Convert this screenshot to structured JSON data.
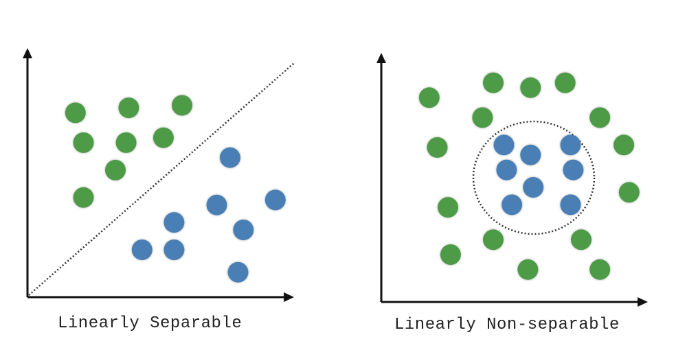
{
  "colors": {
    "class_a": "#4e9a47",
    "class_b": "#4a7fb5",
    "axis": "#111111",
    "boundary": "#333333"
  },
  "diagrams": [
    {
      "id": "left",
      "caption": "Linearly Separable",
      "boundary": "line",
      "points": [
        {
          "cls": "a",
          "x": 0.18,
          "y": 0.74
        },
        {
          "cls": "a",
          "x": 0.38,
          "y": 0.76
        },
        {
          "cls": "a",
          "x": 0.58,
          "y": 0.77
        },
        {
          "cls": "a",
          "x": 0.21,
          "y": 0.62
        },
        {
          "cls": "a",
          "x": 0.37,
          "y": 0.62
        },
        {
          "cls": "a",
          "x": 0.51,
          "y": 0.64
        },
        {
          "cls": "a",
          "x": 0.33,
          "y": 0.51
        },
        {
          "cls": "a",
          "x": 0.21,
          "y": 0.4
        },
        {
          "cls": "b",
          "x": 0.76,
          "y": 0.56
        },
        {
          "cls": "b",
          "x": 0.71,
          "y": 0.37
        },
        {
          "cls": "b",
          "x": 0.93,
          "y": 0.39
        },
        {
          "cls": "b",
          "x": 0.55,
          "y": 0.3
        },
        {
          "cls": "b",
          "x": 0.81,
          "y": 0.27
        },
        {
          "cls": "b",
          "x": 0.43,
          "y": 0.19
        },
        {
          "cls": "b",
          "x": 0.55,
          "y": 0.19
        },
        {
          "cls": "b",
          "x": 0.79,
          "y": 0.1
        }
      ]
    },
    {
      "id": "right",
      "caption": "Linearly Non-separable",
      "boundary": "circle",
      "points": [
        {
          "cls": "a",
          "x": 0.42,
          "y": 0.88
        },
        {
          "cls": "a",
          "x": 0.56,
          "y": 0.86
        },
        {
          "cls": "a",
          "x": 0.69,
          "y": 0.88
        },
        {
          "cls": "a",
          "x": 0.18,
          "y": 0.82
        },
        {
          "cls": "a",
          "x": 0.38,
          "y": 0.74
        },
        {
          "cls": "a",
          "x": 0.82,
          "y": 0.74
        },
        {
          "cls": "a",
          "x": 0.21,
          "y": 0.62
        },
        {
          "cls": "a",
          "x": 0.91,
          "y": 0.63
        },
        {
          "cls": "a",
          "x": 0.93,
          "y": 0.44
        },
        {
          "cls": "a",
          "x": 0.25,
          "y": 0.38
        },
        {
          "cls": "a",
          "x": 0.42,
          "y": 0.25
        },
        {
          "cls": "a",
          "x": 0.75,
          "y": 0.25
        },
        {
          "cls": "a",
          "x": 0.26,
          "y": 0.19
        },
        {
          "cls": "a",
          "x": 0.55,
          "y": 0.13
        },
        {
          "cls": "a",
          "x": 0.82,
          "y": 0.13
        },
        {
          "cls": "b",
          "x": 0.46,
          "y": 0.63
        },
        {
          "cls": "b",
          "x": 0.56,
          "y": 0.59
        },
        {
          "cls": "b",
          "x": 0.71,
          "y": 0.63
        },
        {
          "cls": "b",
          "x": 0.47,
          "y": 0.53
        },
        {
          "cls": "b",
          "x": 0.72,
          "y": 0.53
        },
        {
          "cls": "b",
          "x": 0.57,
          "y": 0.46
        },
        {
          "cls": "b",
          "x": 0.49,
          "y": 0.39
        },
        {
          "cls": "b",
          "x": 0.71,
          "y": 0.39
        }
      ]
    }
  ]
}
